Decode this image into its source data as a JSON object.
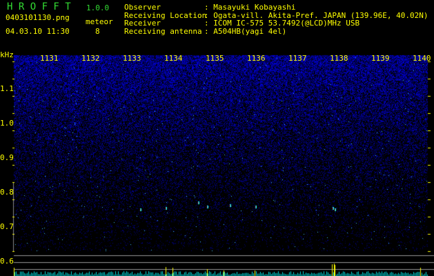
{
  "app": {
    "name": "H R O F F T",
    "version": "1.0.0"
  },
  "file": {
    "name": "0403101130.png",
    "datetime": "04.03.10 11:30"
  },
  "meteor": {
    "label": "meteor",
    "count": "8"
  },
  "info": [
    {
      "label": "Observer",
      "value": ": Masayuki Kobayashi"
    },
    {
      "label": "Receiving Location",
      "value": ": Ogata-vill. Akita-Pref. JAPAN (139.96E, 40.02N)"
    },
    {
      "label": "Receiver",
      "value": ": ICOM IC-575 53.7492(@LCD)MHz USB"
    },
    {
      "label": "Receiving antenna",
      "value": ": A504HB(yagi 4el)"
    }
  ],
  "axis": {
    "unit": "kHz",
    "y_ticks": [
      "1.1",
      "1.0",
      "0.9",
      "0.8",
      "0.7",
      "0.6"
    ],
    "x_ticks": [
      "1131",
      "1132",
      "1133",
      "1134",
      "1135",
      "1136",
      "1137",
      "1138",
      "1139",
      "1140"
    ]
  },
  "colors": {
    "text": "#ffff00",
    "title": "#33dd33",
    "noise": "#2020ff",
    "histogram": "#00e0e0",
    "peak": "#ffff00"
  }
}
